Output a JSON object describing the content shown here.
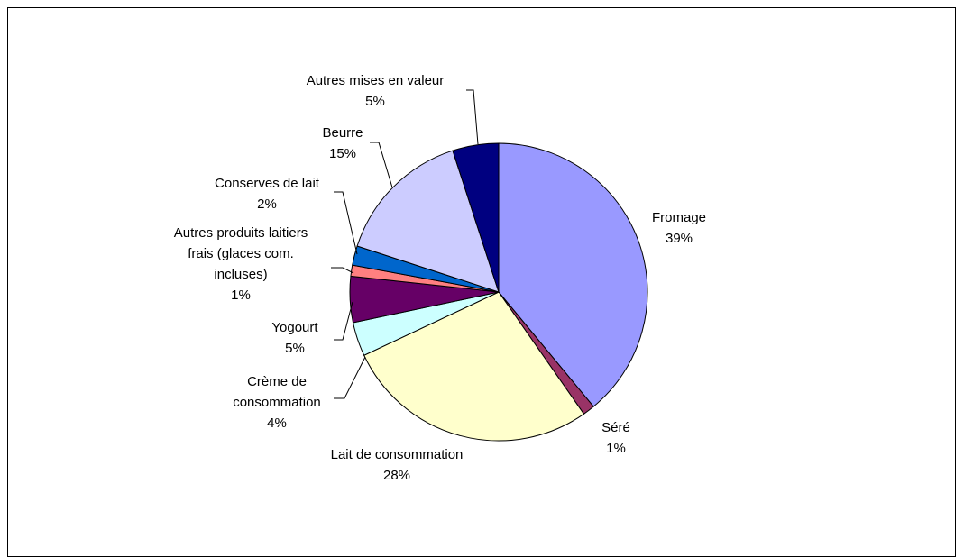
{
  "chart_data": {
    "type": "pie",
    "title": "",
    "slices": [
      {
        "label": "Fromage",
        "percent_label": "39%",
        "value": 39,
        "color": "#9999ff"
      },
      {
        "label": "Séré",
        "percent_label": "1%",
        "value": 1.3,
        "color": "#993366"
      },
      {
        "label": "Lait de consommation",
        "percent_label": "28%",
        "value": 27.7,
        "color": "#ffffcc"
      },
      {
        "label": "Crème de consommation",
        "percent_label": "4%",
        "value": 3.7,
        "color": "#ccffff"
      },
      {
        "label": "Yogourt",
        "percent_label": "5%",
        "value": 5,
        "color": "#660066"
      },
      {
        "label": "Autres produits laitiers frais (glaces com. incluses)",
        "percent_label": "1%",
        "value": 1.2,
        "color": "#ff8080"
      },
      {
        "label": "Conserves de lait",
        "percent_label": "2%",
        "value": 2.1,
        "color": "#0066cc"
      },
      {
        "label": "Beurre",
        "percent_label": "15%",
        "value": 15,
        "color": "#ccccff"
      },
      {
        "label": "Autres mises en valeur",
        "percent_label": "5%",
        "value": 5,
        "color": "#000080"
      }
    ],
    "label_lines": [
      [
        "Fromage",
        "39%"
      ],
      [
        "Séré",
        "1%"
      ],
      [
        "Lait de consommation",
        "28%"
      ],
      [
        "Crème de",
        "consommation",
        "4%"
      ],
      [
        "Yogourt",
        "5%"
      ],
      [
        "Autres produits laitiers",
        "frais (glaces com.",
        "incluses)",
        "1%"
      ],
      [
        "Conserves de lait",
        "2%"
      ],
      [
        "Beurre",
        "15%"
      ],
      [
        "Autres mises en valeur",
        "5%"
      ]
    ]
  }
}
